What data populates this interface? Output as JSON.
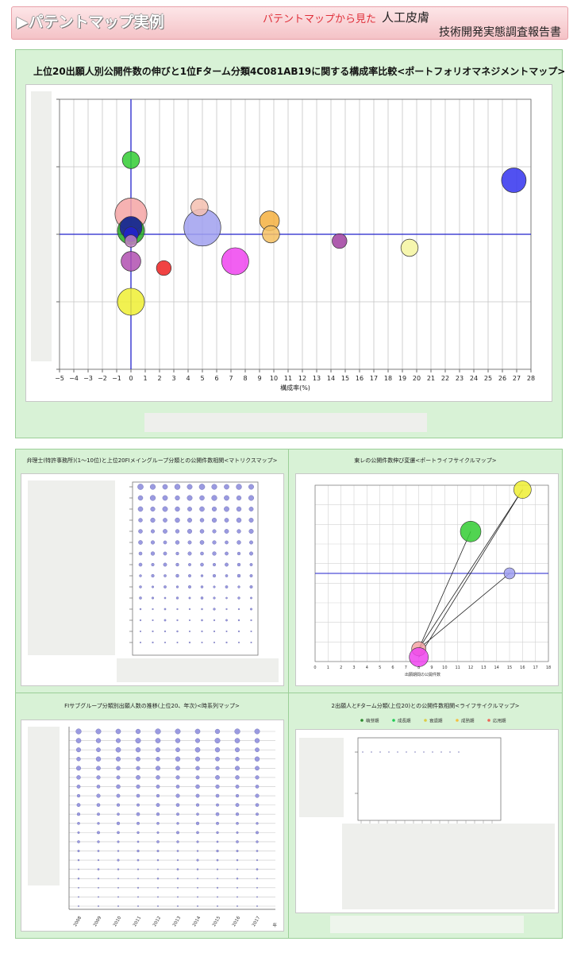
{
  "header": {
    "title": "▶パテントマップ実例",
    "subtitle_red": "パテントマップから見た",
    "subtitle_black": "人工皮膚",
    "subtitle_line2": "技術開発実態調査報告書"
  },
  "main_chart": {
    "title": "上位20出願人別公開件数の伸びと1位Fターム分類4C081AB19に関する構成率比較<ポートフォリオマネジメントマップ>",
    "x_tick_labels": [
      "−5",
      "−4",
      "−3",
      "−2",
      "−1",
      "0",
      "1",
      "2",
      "3",
      "4",
      "5",
      "6",
      "7",
      "8",
      "9",
      "10",
      "11",
      "12",
      "13",
      "14",
      "15",
      "16",
      "17",
      "18",
      "19",
      "20",
      "21",
      "22",
      "23",
      "24",
      "25",
      "26",
      "27",
      "28"
    ],
    "xlabel": "構成率(%)"
  },
  "chart_data": [
    {
      "type": "scatter",
      "title": "上位20出願人別公開件数の伸びと1位Fターム分類4C081AB19に関する構成率比較<ポートフォリオマネジメントマップ>",
      "xlabel": "構成率(%)",
      "ylabel": "",
      "xlim": [
        -5,
        28
      ],
      "ylim": [
        -2,
        2
      ],
      "grid": true,
      "points": [
        {
          "x": 0.0,
          "y": 1.1,
          "r": 7,
          "color": "#33cc33"
        },
        {
          "x": 0.0,
          "y": 0.3,
          "r": 13,
          "color": "#f4a4a4"
        },
        {
          "x": 0.0,
          "y": 0.05,
          "r": 11,
          "color": "#22aa22"
        },
        {
          "x": 0.0,
          "y": 0.1,
          "r": 9,
          "color": "#1a1aa0"
        },
        {
          "x": 0.0,
          "y": 0.0,
          "r": 6,
          "color": "#2222cc"
        },
        {
          "x": 0.0,
          "y": -0.4,
          "r": 8,
          "color": "#b050b0"
        },
        {
          "x": 0.0,
          "y": -0.1,
          "r": 5,
          "color": "#c080c0"
        },
        {
          "x": 0.0,
          "y": -1.0,
          "r": 11,
          "color": "#eeee33"
        },
        {
          "x": 2.3,
          "y": -0.5,
          "r": 6,
          "color": "#ee2222"
        },
        {
          "x": 4.8,
          "y": 0.4,
          "r": 7,
          "color": "#f4c0b0"
        },
        {
          "x": 5.0,
          "y": 0.1,
          "r": 15,
          "color": "#a0a0ee"
        },
        {
          "x": 7.3,
          "y": -0.4,
          "r": 11,
          "color": "#ee44ee"
        },
        {
          "x": 9.7,
          "y": 0.2,
          "r": 8,
          "color": "#f4b040"
        },
        {
          "x": 9.8,
          "y": 0.0,
          "r": 7,
          "color": "#f4c060"
        },
        {
          "x": 14.6,
          "y": -0.1,
          "r": 6,
          "color": "#a040a0"
        },
        {
          "x": 19.5,
          "y": -0.2,
          "r": 7,
          "color": "#f4f4a0"
        },
        {
          "x": 26.8,
          "y": 0.8,
          "r": 10,
          "color": "#3333ee"
        }
      ]
    },
    {
      "type": "scatter",
      "title": "弁理士(特許事務所)(1〜10位)と上位20FIメイングループ分類との公開件数相関<マトリクスマップ>",
      "note": "bubble matrix, 10 columns × 15 rows, sizes decrease downward"
    },
    {
      "type": "line",
      "title": "東レの公開件数伸び変遷<ポートライフサイクルマップ>",
      "xlabel": "出願期間の公開件数",
      "xlim": [
        0,
        18
      ],
      "x_ticks": [
        "0",
        "1",
        "2",
        "3",
        "4",
        "5",
        "6",
        "7",
        "8",
        "9",
        "10",
        "11",
        "12",
        "13",
        "14",
        "15",
        "16",
        "17",
        "18"
      ],
      "points": [
        {
          "x": 8,
          "y": -0.9,
          "color": "#f4a4a4"
        },
        {
          "x": 8,
          "y": -1.0,
          "color": "#ee44ee"
        },
        {
          "x": 12,
          "y": 0.5,
          "color": "#33cc33"
        },
        {
          "x": 16,
          "y": 1.0,
          "color": "#eeee33"
        },
        {
          "x": 15,
          "y": 0.0,
          "color": "#a0a0ee"
        }
      ]
    },
    {
      "type": "scatter",
      "title": "FIサブグループ分類別出願人数の推移(上位20、年次)<時系列マップ>",
      "x": [
        "2008",
        "2009",
        "2010",
        "2011",
        "2012",
        "2013",
        "2014",
        "2015",
        "2016",
        "2017"
      ],
      "x_unit": "年"
    },
    {
      "type": "scatter",
      "title": "2出願人とFターム分類(上位20)との公開件数相関<ライフサイクルマップ>",
      "legend": [
        "萌芽期",
        "成長期",
        "衰退期",
        "成熟期",
        "応用期"
      ]
    }
  ],
  "colors": {
    "panel_bg": "#d8f2d6",
    "axis_blue": "#2222cc",
    "header_text_red": "#e0303a",
    "legend_colors": [
      "#2a8a2a",
      "#22cc55",
      "#ddcc44",
      "#f4c040",
      "#ee6655"
    ]
  },
  "panels": {
    "matrix_title": "弁理士(特許事務所)(1〜10位)と上位20FIメイングループ分類との公開件数相関<マトリクスマップ>",
    "lifecycle_title": "東レの公開件数伸び変遷<ポートライフサイクルマップ>",
    "lifecycle_xlabel": "出願期間の公開件数",
    "timeseries_title": "FIサブグループ分類別出願人数の推移(上位20、年次)<時系列マップ>",
    "timeseries_years": [
      "2008",
      "2009",
      "2010",
      "2011",
      "2012",
      "2013",
      "2014",
      "2015",
      "2016",
      "2017"
    ],
    "timeseries_unit": "年",
    "cycle_title": "2出願人とFターム分類(上位20)との公開件数相関<ライフサイクルマップ>",
    "cycle_legend": [
      "萌芽期",
      "成長期",
      "衰退期",
      "成熟期",
      "応用期"
    ]
  }
}
